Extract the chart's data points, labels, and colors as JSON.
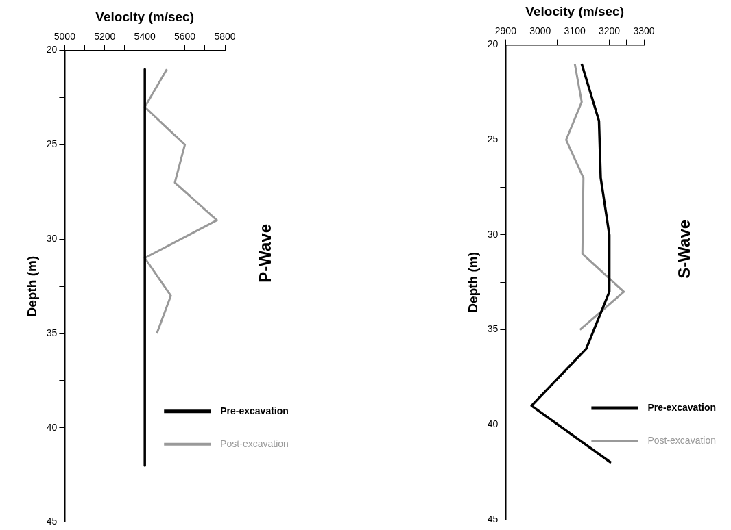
{
  "chart_data": [
    {
      "type": "line",
      "xlabel": "Velocity (m/sec)",
      "ylabel": "Depth (m)",
      "annotations": [
        "P-Wave"
      ],
      "marker": "none",
      "legend": "bottom right",
      "grid": false,
      "xlim": [
        5000,
        5800
      ],
      "xticks": [
        5000,
        {
          "value": 5100,
          "label": null
        },
        5200,
        {
          "value": 5300,
          "label": null
        },
        5400,
        {
          "value": 5500,
          "label": null
        },
        5600,
        {
          "value": 5700,
          "label": null
        },
        5800
      ],
      "ylim": [
        45,
        20
      ],
      "yticks": [
        20,
        {
          "value": 22.5,
          "label": null
        },
        25,
        {
          "value": 27.5,
          "label": null
        },
        30,
        {
          "value": 32.5,
          "label": null
        },
        35,
        {
          "value": 37.5,
          "label": null
        },
        40,
        {
          "value": 42.5,
          "label": null
        },
        45
      ],
      "series": [
        {
          "name": "Pre-excavation",
          "color": "#000000",
          "x": [
            5400,
            5400
          ],
          "values": [
            21,
            42
          ]
        },
        {
          "name": "Post-excavation",
          "color": "#999999",
          "x": [
            5510,
            5400,
            5600,
            5550,
            5760,
            5400,
            5530,
            5460
          ],
          "values": [
            21,
            23,
            25,
            27,
            29,
            31,
            33,
            35
          ]
        }
      ]
    },
    {
      "type": "line",
      "xlabel": "Velocity (m/sec)",
      "ylabel": "Depth (m)",
      "annotations": [
        "S-Wave"
      ],
      "marker": "none",
      "legend": "bottom right",
      "grid": false,
      "xlim": [
        2900,
        3300
      ],
      "xticks": [
        2900,
        {
          "value": 2950,
          "label": null
        },
        3000,
        {
          "value": 3050,
          "label": null
        },
        3100,
        {
          "value": 3150,
          "label": null
        },
        3200,
        {
          "value": 3250,
          "label": null
        },
        3300
      ],
      "ylim": [
        45,
        20
      ],
      "yticks": [
        20,
        {
          "value": 22.5,
          "label": null
        },
        25,
        {
          "value": 27.5,
          "label": null
        },
        30,
        {
          "value": 32.5,
          "label": null
        },
        35,
        {
          "value": 37.5,
          "label": null
        },
        40,
        {
          "value": 42.5,
          "label": null
        },
        45
      ],
      "series": [
        {
          "name": "Pre-excavation",
          "color": "#000000",
          "x": [
            3120,
            3170,
            3175,
            3200,
            3200,
            3133,
            2975,
            3205
          ],
          "values": [
            21,
            24,
            27,
            30,
            33,
            36,
            39,
            42
          ]
        },
        {
          "name": "Post-excavation",
          "color": "#999999",
          "x": [
            3100,
            3120,
            3075,
            3125,
            3122,
            3242,
            3115
          ],
          "values": [
            21,
            23,
            25,
            27,
            31,
            33,
            35
          ]
        }
      ]
    }
  ]
}
